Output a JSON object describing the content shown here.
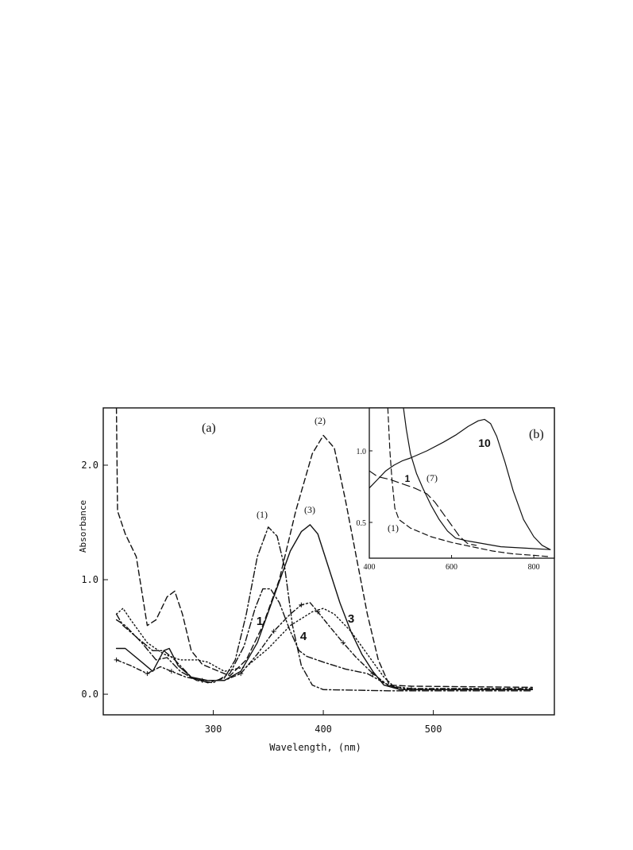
{
  "chart_data": [
    {
      "panel_label": "(a)",
      "type": "line",
      "xlabel": "Wavelength, (nm)",
      "ylabel": "Absorbance",
      "xlim": [
        200,
        610
      ],
      "ylim": [
        -0.18,
        2.5
      ],
      "x_ticks": [
        300,
        400,
        500
      ],
      "y_ticks": [
        "0.0",
        "1.0",
        "2.0"
      ],
      "y_tick_values": [
        0.0,
        1.0,
        2.0
      ],
      "grid": false,
      "series": [
        {
          "name": "(1)",
          "style": "dash-dot",
          "points": [
            [
              212,
              0.7
            ],
            [
              218,
              0.6
            ],
            [
              230,
              0.5
            ],
            [
              245,
              0.38
            ],
            [
              255,
              0.38
            ],
            [
              265,
              0.3
            ],
            [
              280,
              0.15
            ],
            [
              295,
              0.1
            ],
            [
              310,
              0.14
            ],
            [
              320,
              0.3
            ],
            [
              330,
              0.7
            ],
            [
              340,
              1.2
            ],
            [
              350,
              1.46
            ],
            [
              358,
              1.38
            ],
            [
              365,
              1.1
            ],
            [
              372,
              0.6
            ],
            [
              380,
              0.25
            ],
            [
              390,
              0.08
            ],
            [
              400,
              0.04
            ],
            [
              460,
              0.03
            ],
            [
              590,
              0.03
            ]
          ]
        },
        {
          "name": "(2)",
          "style": "dashed",
          "points": [
            [
              212,
              2.5
            ],
            [
              213,
              1.6
            ],
            [
              220,
              1.4
            ],
            [
              230,
              1.2
            ],
            [
              240,
              0.6
            ],
            [
              248,
              0.65
            ],
            [
              258,
              0.85
            ],
            [
              265,
              0.9
            ],
            [
              272,
              0.7
            ],
            [
              280,
              0.38
            ],
            [
              290,
              0.26
            ],
            [
              300,
              0.22
            ],
            [
              315,
              0.16
            ],
            [
              330,
              0.3
            ],
            [
              345,
              0.6
            ],
            [
              360,
              1.0
            ],
            [
              375,
              1.6
            ],
            [
              390,
              2.1
            ],
            [
              400,
              2.26
            ],
            [
              410,
              2.15
            ],
            [
              420,
              1.7
            ],
            [
              430,
              1.2
            ],
            [
              440,
              0.7
            ],
            [
              450,
              0.3
            ],
            [
              460,
              0.08
            ],
            [
              480,
              0.07
            ],
            [
              590,
              0.06
            ]
          ]
        },
        {
          "name": "(3)",
          "style": "solid",
          "points": [
            [
              212,
              0.4
            ],
            [
              220,
              0.4
            ],
            [
              235,
              0.28
            ],
            [
              245,
              0.2
            ],
            [
              255,
              0.38
            ],
            [
              260,
              0.4
            ],
            [
              268,
              0.25
            ],
            [
              280,
              0.15
            ],
            [
              295,
              0.12
            ],
            [
              310,
              0.12
            ],
            [
              325,
              0.2
            ],
            [
              340,
              0.45
            ],
            [
              355,
              0.85
            ],
            [
              370,
              1.25
            ],
            [
              380,
              1.42
            ],
            [
              388,
              1.48
            ],
            [
              395,
              1.4
            ],
            [
              405,
              1.1
            ],
            [
              415,
              0.8
            ],
            [
              425,
              0.55
            ],
            [
              435,
              0.35
            ],
            [
              445,
              0.2
            ],
            [
              455,
              0.08
            ],
            [
              470,
              0.04
            ],
            [
              590,
              0.04
            ]
          ]
        },
        {
          "name": "1",
          "style": "dash-dot",
          "points": [
            [
              212,
              0.65
            ],
            [
              220,
              0.6
            ],
            [
              235,
              0.45
            ],
            [
              248,
              0.3
            ],
            [
              258,
              0.32
            ],
            [
              270,
              0.2
            ],
            [
              285,
              0.12
            ],
            [
              300,
              0.1
            ],
            [
              315,
              0.18
            ],
            [
              328,
              0.42
            ],
            [
              338,
              0.75
            ],
            [
              345,
              0.92
            ],
            [
              352,
              0.92
            ],
            [
              360,
              0.8
            ],
            [
              370,
              0.55
            ],
            [
              378,
              0.38
            ],
            [
              385,
              0.33
            ],
            [
              400,
              0.28
            ],
            [
              420,
              0.22
            ],
            [
              440,
              0.18
            ],
            [
              455,
              0.1
            ],
            [
              470,
              0.04
            ],
            [
              590,
              0.04
            ]
          ]
        },
        {
          "name": "3",
          "style": "dotted",
          "points": [
            [
              212,
              0.7
            ],
            [
              218,
              0.75
            ],
            [
              225,
              0.65
            ],
            [
              240,
              0.45
            ],
            [
              255,
              0.35
            ],
            [
              270,
              0.3
            ],
            [
              285,
              0.3
            ],
            [
              295,
              0.28
            ],
            [
              310,
              0.2
            ],
            [
              330,
              0.24
            ],
            [
              350,
              0.4
            ],
            [
              370,
              0.6
            ],
            [
              390,
              0.72
            ],
            [
              400,
              0.75
            ],
            [
              410,
              0.7
            ],
            [
              425,
              0.55
            ],
            [
              440,
              0.35
            ],
            [
              455,
              0.15
            ],
            [
              465,
              0.06
            ],
            [
              480,
              0.04
            ],
            [
              590,
              0.04
            ]
          ]
        },
        {
          "name": "4",
          "style": "cross-marked",
          "points": [
            [
              212,
              0.3
            ],
            [
              225,
              0.25
            ],
            [
              240,
              0.18
            ],
            [
              252,
              0.24
            ],
            [
              262,
              0.2
            ],
            [
              275,
              0.15
            ],
            [
              290,
              0.12
            ],
            [
              310,
              0.12
            ],
            [
              325,
              0.18
            ],
            [
              340,
              0.35
            ],
            [
              355,
              0.55
            ],
            [
              370,
              0.7
            ],
            [
              380,
              0.78
            ],
            [
              388,
              0.8
            ],
            [
              395,
              0.72
            ],
            [
              405,
              0.6
            ],
            [
              418,
              0.45
            ],
            [
              430,
              0.32
            ],
            [
              445,
              0.18
            ],
            [
              460,
              0.07
            ],
            [
              480,
              0.05
            ],
            [
              590,
              0.05
            ]
          ]
        }
      ],
      "annotations": [
        "(1)",
        "(2)",
        "(3)",
        "1",
        "4",
        "3"
      ]
    },
    {
      "panel_label": "(b)",
      "type": "line",
      "xlabel": "",
      "ylabel": "",
      "xlim": [
        400,
        850
      ],
      "ylim": [
        0.25,
        1.3
      ],
      "x_ticks": [
        400,
        600,
        800
      ],
      "y_ticks": [
        "0.5",
        "1.0"
      ],
      "y_tick_values": [
        0.5,
        1.0
      ],
      "grid": false,
      "series": [
        {
          "name": "(1)",
          "style": "dashed",
          "points": [
            [
              445,
              1.3
            ],
            [
              450,
              1.0
            ],
            [
              455,
              0.8
            ],
            [
              462,
              0.6
            ],
            [
              472,
              0.52
            ],
            [
              500,
              0.46
            ],
            [
              550,
              0.4
            ],
            [
              600,
              0.36
            ],
            [
              650,
              0.33
            ],
            [
              700,
              0.3
            ],
            [
              750,
              0.28
            ],
            [
              800,
              0.27
            ],
            [
              840,
              0.26
            ]
          ]
        },
        {
          "name": "(7)",
          "style": "solid",
          "points": [
            [
              483,
              1.3
            ],
            [
              490,
              1.15
            ],
            [
              500,
              0.98
            ],
            [
              515,
              0.84
            ],
            [
              530,
              0.74
            ],
            [
              550,
              0.62
            ],
            [
              570,
              0.52
            ],
            [
              590,
              0.44
            ],
            [
              610,
              0.39
            ],
            [
              640,
              0.37
            ],
            [
              680,
              0.35
            ],
            [
              720,
              0.33
            ],
            [
              780,
              0.32
            ],
            [
              840,
              0.31
            ]
          ]
        },
        {
          "name": "1",
          "style": "long-dash",
          "points": [
            [
              400,
              0.86
            ],
            [
              420,
              0.82
            ],
            [
              450,
              0.8
            ],
            [
              480,
              0.77
            ],
            [
              510,
              0.74
            ],
            [
              540,
              0.7
            ],
            [
              560,
              0.64
            ],
            [
              580,
              0.56
            ],
            [
              600,
              0.48
            ],
            [
              620,
              0.4
            ],
            [
              640,
              0.35
            ],
            [
              660,
              0.34
            ]
          ]
        },
        {
          "name": "10",
          "style": "solid",
          "points": [
            [
              400,
              0.74
            ],
            [
              420,
              0.8
            ],
            [
              440,
              0.86
            ],
            [
              460,
              0.9
            ],
            [
              480,
              0.93
            ],
            [
              500,
              0.95
            ],
            [
              540,
              1.0
            ],
            [
              580,
              1.06
            ],
            [
              610,
              1.11
            ],
            [
              640,
              1.17
            ],
            [
              665,
              1.21
            ],
            [
              680,
              1.22
            ],
            [
              695,
              1.19
            ],
            [
              710,
              1.1
            ],
            [
              730,
              0.92
            ],
            [
              750,
              0.72
            ],
            [
              775,
              0.52
            ],
            [
              800,
              0.4
            ],
            [
              820,
              0.34
            ],
            [
              840,
              0.31
            ]
          ]
        }
      ],
      "annotations": [
        "10",
        "1",
        "(7)",
        "(1)"
      ]
    }
  ]
}
